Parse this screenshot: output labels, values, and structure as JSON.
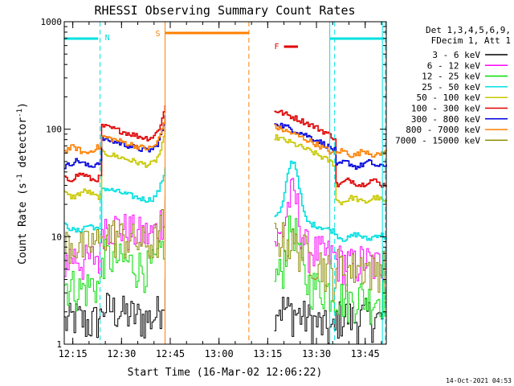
{
  "chart_data": {
    "type": "line",
    "title": "RHESSI Observing Summary Count Rates",
    "xlabel": "Start Time (16-Mar-02 12:06:22)",
    "ylabel": "Count Rate (s^-1 detector^-1)",
    "ylabel_parts": {
      "pre": "Count Rate (s",
      "sup1": "-1",
      "mid": " detector",
      "sup2": "-1",
      "post": ")"
    },
    "y_scale": "log",
    "ylim": [
      1,
      1000
    ],
    "xlim_min": [
      6.37,
      105.5
    ],
    "x_tick_minutes": [
      9,
      24,
      39,
      54,
      69,
      84,
      99
    ],
    "x_tick_labels": [
      "12:15",
      "12:30",
      "12:45",
      "13:00",
      "13:15",
      "13:30",
      "13:45"
    ],
    "y_tick_values": [
      1,
      10,
      100,
      1000
    ],
    "y_tick_labels": [
      "1",
      "10",
      "100",
      "1000"
    ],
    "legend_placement": "top-right",
    "legend_header": [
      "Det 1,3,4,5,6,9,",
      "FDecim 1, Att 1"
    ],
    "series": [
      {
        "name": "3 - 6 keV",
        "color": "#000000",
        "level1": 1.6,
        "level2": 1.7,
        "flare_peak": 2.2
      },
      {
        "name": "6 - 12 keV",
        "color": "#ff00ff",
        "level1": 6.0,
        "level2": 5.5,
        "flare_peak": 18
      },
      {
        "name": "12 - 25 keV",
        "color": "#00dd00",
        "level1": 3.3,
        "level2": 2.6,
        "flare_peak": 9
      },
      {
        "name": "25 - 50 keV",
        "color": "#00e0e0",
        "level1": 12,
        "level2": 10,
        "flare_peak": 40
      },
      {
        "name": "50 - 100 keV",
        "color": "#c8c800",
        "level1": 25,
        "level2": 22,
        "flare_peak": 85
      },
      {
        "name": "100 - 300 keV",
        "color": "#e00000",
        "level1": 36,
        "level2": 32,
        "flare_peak": 150
      },
      {
        "name": "300 - 800 keV",
        "color": "#0000dd",
        "level1": 48,
        "level2": 47,
        "flare_peak": 115
      },
      {
        "name": "800 - 7000 keV",
        "color": "#ff8000",
        "level1": 64,
        "level2": 60,
        "flare_peak": 105
      },
      {
        "name": "7000 - 15000 keV",
        "color": "#8b8b00",
        "level1": 8,
        "level2": 5,
        "flare_peak": 10
      }
    ],
    "annotations": [
      {
        "label": "N",
        "color": "#00e0e0",
        "meaning": "night"
      },
      {
        "label": "S",
        "color": "#ff8000",
        "meaning": "SAA"
      },
      {
        "label": "F",
        "color": "#e00000",
        "meaning": "flare"
      }
    ],
    "night_intervals_min": [
      [
        6.37,
        17.4
      ],
      [
        89.6,
        105.5
      ]
    ],
    "saa_interval_min": [
      37.4,
      63.2
    ],
    "flare_interval_min": [
      73.5,
      78.3
    ],
    "data_gap_min": [
      37.4,
      71.0
    ],
    "timestamp": "14-Oct-2021 04:53"
  }
}
